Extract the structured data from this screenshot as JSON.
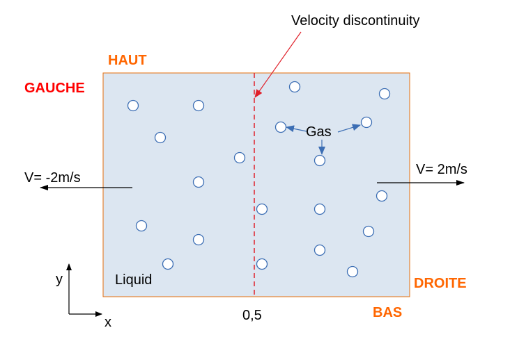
{
  "labels": {
    "annotation": "Velocity discontinuity",
    "top": "HAUT",
    "left": "GAUCHE",
    "right": "DROITE",
    "bottom": "BAS",
    "velocity_left": "V= -2m/s",
    "velocity_right": "V= 2m/s",
    "gas": "Gas",
    "liquid": "Liquid",
    "interface_x": "0,5",
    "axis_y": "y",
    "axis_x": "x"
  },
  "colors": {
    "domain_fill": "#dce6f1",
    "domain_border": "#e46c0a",
    "boundary_label": "#ff0000",
    "orange_label": "#ff6600",
    "discontinuity": "#e0202a",
    "arrow_blue": "#3c6eb4",
    "bubble_stroke": "#3c6eb4",
    "text": "#000000"
  }
}
